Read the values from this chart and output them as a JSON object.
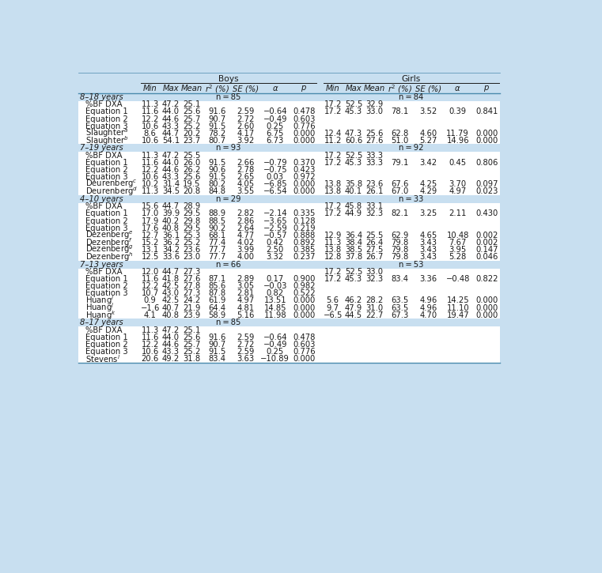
{
  "sections": [
    {
      "section_label": "8–18 years",
      "boys_n": "n = 85",
      "girls_n": "n = 84",
      "rows": [
        {
          "label": "%BF DXA",
          "boys": [
            "11.3",
            "47.2",
            "25.1",
            "",
            "",
            "",
            ""
          ],
          "girls": [
            "17.2",
            "52.5",
            "32.9",
            "",
            "",
            "",
            ""
          ]
        },
        {
          "label": "Equation 1",
          "boys": [
            "11.6",
            "44.0",
            "25.6",
            "91.6",
            "2.59",
            "−0.64",
            "0.478"
          ],
          "girls": [
            "17.2",
            "45.3",
            "33.0",
            "78.1",
            "3.52",
            "0.39",
            "0.841"
          ]
        },
        {
          "label": "Equation 2",
          "boys": [
            "12.2",
            "44.6",
            "25.7",
            "90.7",
            "2.72",
            "−0.49",
            "0.603"
          ],
          "girls": [
            "",
            "",
            "",
            "",
            "",
            "",
            ""
          ]
        },
        {
          "label": "Equation 3",
          "boys": [
            "10.6",
            "43.3",
            "25.2",
            "91.5",
            "2.60",
            "0.25",
            "0.776"
          ],
          "girls": [
            "",
            "",
            "",
            "",
            "",
            "",
            ""
          ]
        },
        {
          "label": "Slaughter$^a$",
          "boys": [
            "8.6",
            "44.7",
            "20.2",
            "78.2",
            "4.17",
            "6.75",
            "0.000"
          ],
          "girls": [
            "12.4",
            "47.3",
            "25.6",
            "62.8",
            "4.60",
            "11.79",
            "0.000"
          ]
        },
        {
          "label": "Slaughter$^b$",
          "boys": [
            "10.6",
            "54.1",
            "23.7",
            "80.7",
            "3.92",
            "6.73",
            "0.000"
          ],
          "girls": [
            "11.2",
            "60.6",
            "27.6",
            "51.0",
            "5.27",
            "14.96",
            "0.000"
          ]
        }
      ]
    },
    {
      "section_label": "7–19 years",
      "boys_n": "n = 93",
      "girls_n": "n = 92",
      "rows": [
        {
          "label": "%BF DXA",
          "boys": [
            "11.3",
            "47.2",
            "25.5",
            "",
            "",
            "",
            ""
          ],
          "girls": [
            "17.2",
            "52.5",
            "33.3",
            "",
            "",
            "",
            ""
          ]
        },
        {
          "label": "Equation 1",
          "boys": [
            "11.6",
            "44.0",
            "26.0",
            "91.5",
            "2.66",
            "−0.79",
            "0.370"
          ],
          "girls": [
            "17.2",
            "45.3",
            "33.3",
            "79.1",
            "3.42",
            "0.45",
            "0.806"
          ]
        },
        {
          "label": "Equation 2",
          "boys": [
            "12.2",
            "44.6",
            "26.2",
            "90.6",
            "2.78",
            "−0.75",
            "0.423"
          ],
          "girls": [
            "",
            "",
            "",
            "",
            "",
            "",
            ""
          ]
        },
        {
          "label": "Equation 3",
          "boys": [
            "10.6",
            "43.3",
            "25.6",
            "91.5",
            "2.65",
            "0.03",
            "0.972"
          ],
          "girls": [
            "",
            "",
            "",
            "",
            "",
            "",
            ""
          ]
        },
        {
          "label": "Deurenberg$^c$",
          "boys": [
            "10.2",
            "31.4",
            "19.5",
            "80.2",
            "4.05",
            "−6.85",
            "0.000"
          ],
          "girls": [
            "13.8",
            "35.8",
            "23.6",
            "67.6",
            "4.25",
            "3.70",
            "0.097"
          ]
        },
        {
          "label": "Deurenberg$^d$",
          "boys": [
            "11.3",
            "34.5",
            "20.8",
            "84.8",
            "3.55",
            "−6.54",
            "0.000"
          ],
          "girls": [
            "13.8",
            "40.1",
            "26.1",
            "67.0",
            "4.29",
            "4.97",
            "0.023"
          ]
        }
      ]
    },
    {
      "section_label": "4–10 years",
      "boys_n": "n = 29",
      "girls_n": "n = 33",
      "rows": [
        {
          "label": "%BF DXA",
          "boys": [
            "15.6",
            "44.7",
            "28.9",
            "",
            "",
            "",
            ""
          ],
          "girls": [
            "17.2",
            "45.8",
            "33.1",
            "",
            "",
            "",
            ""
          ]
        },
        {
          "label": "Equation 1",
          "boys": [
            "17.0",
            "39.9",
            "29.5",
            "88.9",
            "2.82",
            "−2.14",
            "0.335"
          ],
          "girls": [
            "17.2",
            "44.9",
            "32.3",
            "82.1",
            "3.25",
            "2.11",
            "0.430"
          ]
        },
        {
          "label": "Equation 2",
          "boys": [
            "17.9",
            "40.2",
            "29.8",
            "88.5",
            "2.86",
            "−3.65",
            "0.128"
          ],
          "girls": [
            "",
            "",
            "",
            "",
            "",
            "",
            ""
          ]
        },
        {
          "label": "Equation 3",
          "boys": [
            "17.6",
            "40.8",
            "29.5",
            "90.2",
            "2.64",
            "−2.59",
            "0.219"
          ],
          "girls": [
            "",
            "",
            "",
            "",
            "",
            "",
            ""
          ]
        },
        {
          "label": "Dezenberg$^e$",
          "boys": [
            "12.7",
            "36.1",
            "25.3",
            "68.1",
            "4.77",
            "−0.57",
            "0.888"
          ],
          "girls": [
            "12.9",
            "36.4",
            "25.5",
            "62.9",
            "4.65",
            "10.48",
            "0.002"
          ]
        },
        {
          "label": "Dezenberg$^f$",
          "boys": [
            "15.2",
            "36.2",
            "25.2",
            "77.4",
            "4.02",
            "0.42",
            "0.892"
          ],
          "girls": [
            "11.3",
            "38.4",
            "26.4",
            "79.8",
            "3.43",
            "7.67",
            "0.002"
          ]
        },
        {
          "label": "Dezenberg$^g$",
          "boys": [
            "13.1",
            "34.2",
            "23.6",
            "77.7",
            "3.99",
            "2.50",
            "0.385"
          ],
          "girls": [
            "13.8",
            "38.5",
            "27.5",
            "79.8",
            "3.43",
            "3.95",
            "0.147"
          ]
        },
        {
          "label": "Dezenberg$^h$",
          "boys": [
            "12.5",
            "33.6",
            "23.0",
            "77.7",
            "4.00",
            "3.32",
            "0.237"
          ],
          "girls": [
            "12.8",
            "37.8",
            "26.7",
            "79.8",
            "3.43",
            "5.28",
            "0.046"
          ]
        }
      ]
    },
    {
      "section_label": "7–13 years",
      "boys_n": "n = 66",
      "girls_n": "n = 53",
      "rows": [
        {
          "label": "%BF DXA",
          "boys": [
            "12.0",
            "44.7",
            "27.3",
            "",
            "",
            "",
            ""
          ],
          "girls": [
            "17.2",
            "52.5",
            "33.0",
            "",
            "",
            "",
            ""
          ]
        },
        {
          "label": "Equation 1",
          "boys": [
            "11.6",
            "41.8",
            "27.6",
            "87.1",
            "2.89",
            "0.17",
            "0.900"
          ],
          "girls": [
            "17.2",
            "45.3",
            "32.3",
            "83.4",
            "3.36",
            "−0.48",
            "0.822"
          ]
        },
        {
          "label": "Equation 2",
          "boys": [
            "12.2",
            "42.5",
            "27.8",
            "85.6",
            "3.05",
            "−0.03",
            "0.982"
          ],
          "girls": [
            "",
            "",
            "",
            "",
            "",
            "",
            ""
          ]
        },
        {
          "label": "Equation 3",
          "boys": [
            "10.7",
            "43.0",
            "27.3",
            "87.8",
            "2.81",
            "0.82",
            "0.522"
          ],
          "girls": [
            "",
            "",
            "",
            "",
            "",
            "",
            ""
          ]
        },
        {
          "label": "Huang$^i$",
          "boys": [
            "0.9",
            "42.5",
            "24.2",
            "61.9",
            "4.97",
            "13.51",
            "0.000"
          ],
          "girls": [
            "5.6",
            "46.2",
            "28.2",
            "63.5",
            "4.96",
            "14.25",
            "0.000"
          ]
        },
        {
          "label": "Huang$^j$",
          "boys": [
            "−1.6",
            "40.7",
            "21.9",
            "64.4",
            "4.81",
            "14.85",
            "0.000"
          ],
          "girls": [
            "9.7",
            "47.9",
            "31.0",
            "63.5",
            "4.96",
            "11.10",
            "0.000"
          ]
        },
        {
          "label": "Huang$^k$",
          "boys": [
            "4.1",
            "40.8",
            "23.9",
            "58.9",
            "5.16",
            "11.98",
            "0.000"
          ],
          "girls": [
            "−6.5",
            "44.5",
            "22.7",
            "67.3",
            "4.70",
            "19.47",
            "0.000"
          ]
        }
      ]
    },
    {
      "section_label": "8–17 years",
      "boys_n": "n = 85",
      "girls_n": "",
      "rows": [
        {
          "label": "%BF DXA",
          "boys": [
            "11.3",
            "47.2",
            "25.1",
            "",
            "",
            "",
            ""
          ],
          "girls": [
            "",
            "",
            "",
            "",
            "",
            "",
            ""
          ]
        },
        {
          "label": "Equation 1",
          "boys": [
            "11.6",
            "44.0",
            "25.6",
            "91.6",
            "2.59",
            "−0.64",
            "0.478"
          ],
          "girls": [
            "",
            "",
            "",
            "",
            "",
            "",
            ""
          ]
        },
        {
          "label": "Equation 2",
          "boys": [
            "12.2",
            "44.6",
            "25.7",
            "90.7",
            "2.72",
            "−0.49",
            "0.603"
          ],
          "girls": [
            "",
            "",
            "",
            "",
            "",
            "",
            ""
          ]
        },
        {
          "label": "Equation 3",
          "boys": [
            "10.6",
            "43.3",
            "25.2",
            "91.5",
            "2.59",
            "0.25",
            "0.776"
          ],
          "girls": [
            "",
            "",
            "",
            "",
            "",
            "",
            ""
          ]
        },
        {
          "label": "Stevens$^l$",
          "boys": [
            "20.6",
            "49.2",
            "31.8",
            "83.4",
            "3.63",
            "−10.89",
            "0.000"
          ],
          "girls": [
            "",
            "",
            "",
            "",
            "",
            "",
            ""
          ]
        }
      ]
    }
  ],
  "bg_color_page": "#c8dff0",
  "bg_color_header": "#c8dff0",
  "bg_color_section": "#c8dff0",
  "bg_color_row": "#ffffff",
  "line_color": "#5a9abf",
  "text_color": "#1a1a1a",
  "font_size": 7.2
}
